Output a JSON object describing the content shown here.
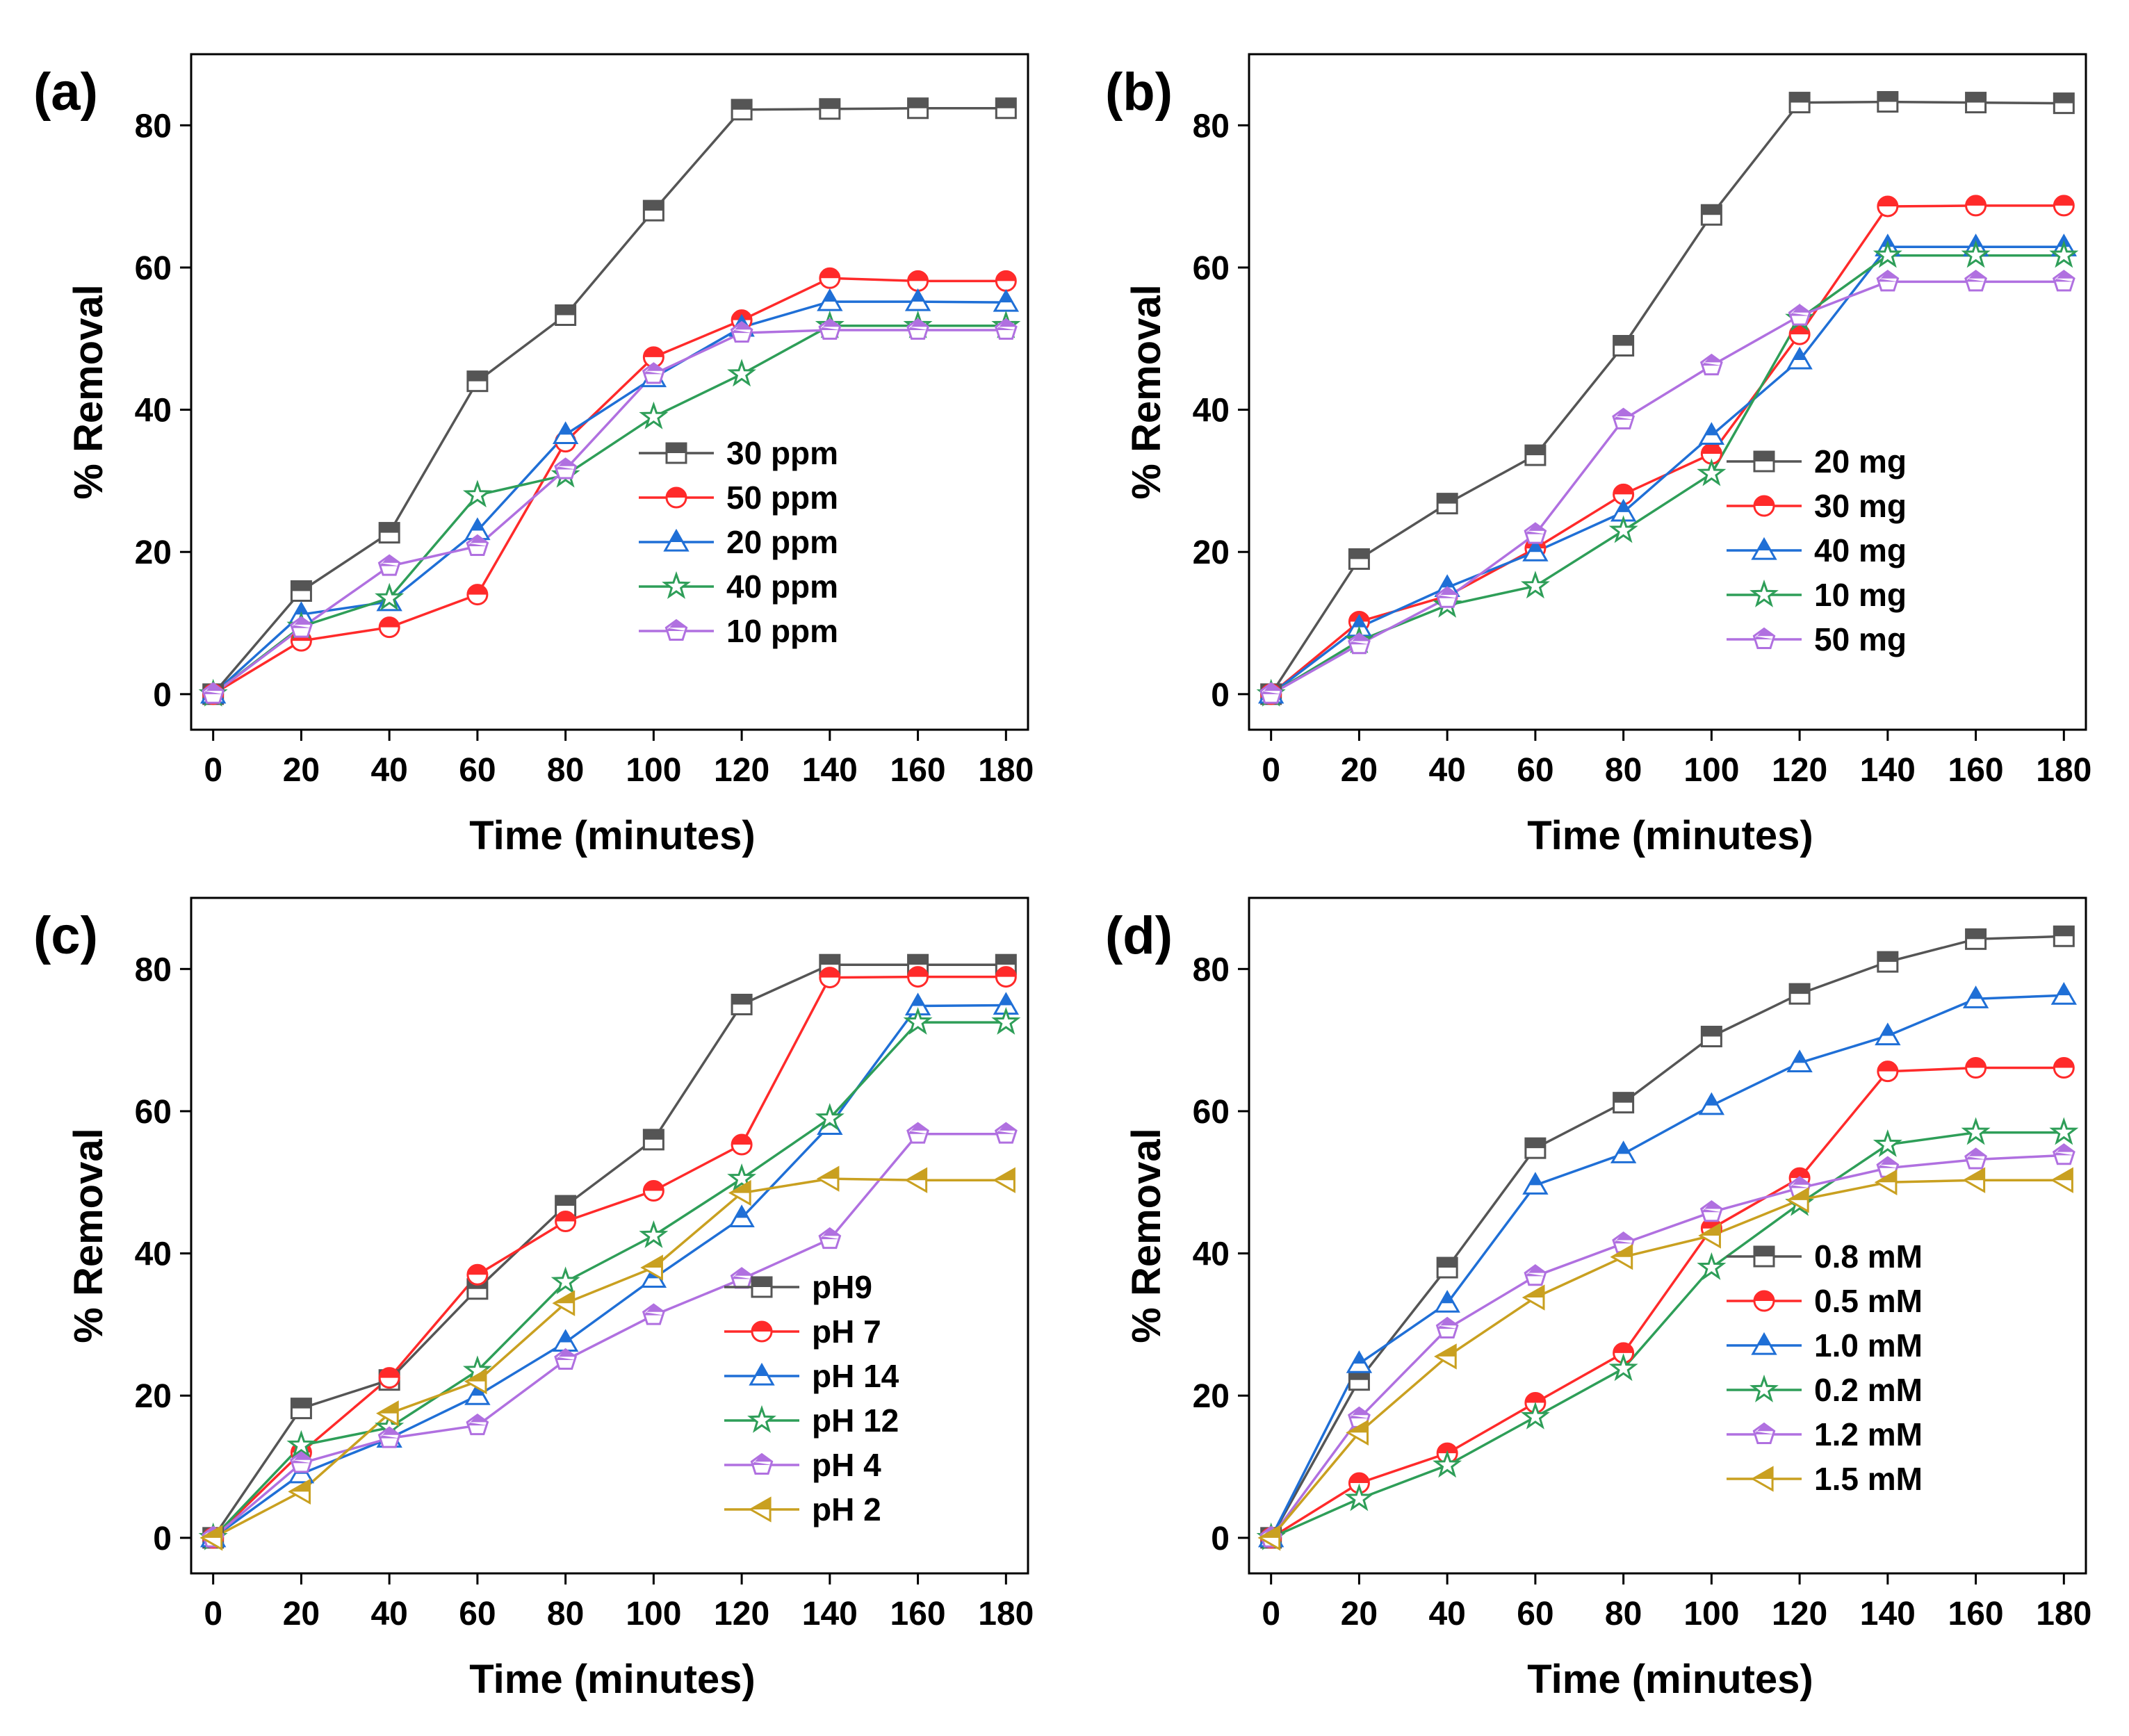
{
  "figure": {
    "panel_count": 4
  },
  "chart_data": [
    {
      "panel": "(a)",
      "type": "line",
      "title": "",
      "xlabel": "Time (minutes)",
      "ylabel": "% Removal",
      "x": [
        0,
        20,
        40,
        60,
        80,
        100,
        120,
        140,
        160,
        180
      ],
      "xticks": [
        0,
        20,
        40,
        60,
        80,
        100,
        120,
        140,
        160,
        180
      ],
      "yticks": [
        0,
        20,
        40,
        60,
        80
      ],
      "xlim": [
        -5,
        185
      ],
      "ylim": [
        -5,
        90
      ],
      "grid": false,
      "legend": "center-right",
      "series": [
        {
          "name": "30 ppm",
          "color": "#555555",
          "marker": "square",
          "values": [
            0,
            14.5,
            22.7,
            44,
            53.3,
            68,
            82.2,
            82.3,
            82.4,
            82.4
          ]
        },
        {
          "name": "50 ppm",
          "color": "#ff2a2a",
          "marker": "circle",
          "values": [
            0,
            7.5,
            9.4,
            14,
            35.5,
            47.4,
            52.6,
            58.5,
            58.1,
            58.1
          ]
        },
        {
          "name": "20 ppm",
          "color": "#1f6fd6",
          "marker": "triangle",
          "values": [
            0,
            11.2,
            13,
            23,
            36.5,
            44.5,
            51.6,
            55.2,
            55.2,
            55.1
          ]
        },
        {
          "name": "40 ppm",
          "color": "#2e9e58",
          "marker": "star",
          "values": [
            0,
            9.5,
            13.5,
            28,
            30.8,
            39,
            45,
            51.8,
            51.8,
            51.8
          ]
        },
        {
          "name": "10 ppm",
          "color": "#b070e0",
          "marker": "pentagon",
          "values": [
            0,
            9.3,
            18,
            20.8,
            31.6,
            45,
            50.8,
            51.2,
            51.2,
            51.2
          ]
        }
      ]
    },
    {
      "panel": "(b)",
      "type": "line",
      "title": "",
      "xlabel": "Time (minutes)",
      "ylabel": "% Removal",
      "x": [
        0,
        20,
        40,
        60,
        80,
        100,
        120,
        140,
        160,
        180
      ],
      "xticks": [
        0,
        20,
        40,
        60,
        80,
        100,
        120,
        140,
        160,
        180
      ],
      "yticks": [
        0,
        20,
        40,
        60,
        80
      ],
      "xlim": [
        -5,
        185
      ],
      "ylim": [
        -5,
        90
      ],
      "grid": false,
      "legend": "center-right",
      "series": [
        {
          "name": "20 mg",
          "color": "#555555",
          "marker": "square",
          "values": [
            0,
            19,
            26.8,
            33.6,
            49,
            67.4,
            83.2,
            83.3,
            83.2,
            83.1
          ]
        },
        {
          "name": "30 mg",
          "color": "#ff2a2a",
          "marker": "circle",
          "values": [
            0,
            10.2,
            13.8,
            20.5,
            28.1,
            33.8,
            50.6,
            68.6,
            68.7,
            68.7
          ]
        },
        {
          "name": "40 mg",
          "color": "#1f6fd6",
          "marker": "triangle",
          "values": [
            0,
            9.4,
            15,
            20,
            25.6,
            36.4,
            47,
            62.9,
            62.9,
            62.9
          ]
        },
        {
          "name": "10 mg",
          "color": "#2e9e58",
          "marker": "star",
          "values": [
            0,
            7.5,
            12.5,
            15.2,
            23,
            31,
            52.8,
            61.7,
            61.7,
            61.7
          ]
        },
        {
          "name": "50 mg",
          "color": "#b070e0",
          "marker": "pentagon",
          "values": [
            0,
            7,
            13.5,
            22.5,
            38.6,
            46.2,
            53.2,
            58,
            58,
            58
          ]
        }
      ]
    },
    {
      "panel": "(c)",
      "type": "line",
      "title": "",
      "xlabel": "Time (minutes)",
      "ylabel": "% Removal",
      "x": [
        0,
        20,
        40,
        60,
        80,
        100,
        120,
        140,
        160,
        180
      ],
      "xticks": [
        0,
        20,
        40,
        60,
        80,
        100,
        120,
        140,
        160,
        180
      ],
      "yticks": [
        0,
        20,
        40,
        60,
        80
      ],
      "xlim": [
        -5,
        185
      ],
      "ylim": [
        -5,
        90
      ],
      "grid": false,
      "legend": "center-right",
      "series": [
        {
          "name": "pH9",
          "color": "#555555",
          "marker": "square",
          "values": [
            0,
            18.2,
            22.2,
            35,
            46.7,
            56,
            75,
            80.6,
            80.6,
            80.6
          ]
        },
        {
          "name": "pH 7",
          "color": "#ff2a2a",
          "marker": "circle",
          "values": [
            0,
            12,
            22.5,
            37,
            44.5,
            48.8,
            55.3,
            78.8,
            78.9,
            78.9
          ]
        },
        {
          "name": "pH 14",
          "color": "#1f6fd6",
          "marker": "triangle",
          "values": [
            0,
            9,
            14,
            20,
            27.5,
            36.5,
            45,
            58,
            74.8,
            74.9
          ]
        },
        {
          "name": "pH 12",
          "color": "#2e9e58",
          "marker": "star",
          "values": [
            0,
            13,
            15.5,
            23.5,
            36,
            42.5,
            50.5,
            59,
            72.5,
            72.5
          ]
        },
        {
          "name": "pH 4",
          "color": "#b070e0",
          "marker": "pentagon",
          "values": [
            0,
            10.5,
            14,
            15.8,
            25,
            31.3,
            36.4,
            42,
            56.8,
            56.8
          ]
        },
        {
          "name": "pH 2",
          "color": "#c9a020",
          "marker": "triangle-left",
          "values": [
            0,
            6.5,
            17.5,
            22,
            33,
            38,
            48.5,
            50.5,
            50.3,
            50.3
          ]
        }
      ]
    },
    {
      "panel": "(d)",
      "type": "line",
      "title": "",
      "xlabel": "Time (minutes)",
      "ylabel": "% Removal",
      "x": [
        0,
        20,
        40,
        60,
        80,
        100,
        120,
        140,
        160,
        180
      ],
      "xticks": [
        0,
        20,
        40,
        60,
        80,
        100,
        120,
        140,
        160,
        180
      ],
      "yticks": [
        0,
        20,
        40,
        60,
        80
      ],
      "xlim": [
        -5,
        185
      ],
      "ylim": [
        -5,
        90
      ],
      "grid": false,
      "legend": "center-right",
      "series": [
        {
          "name": "0.8 mM",
          "color": "#555555",
          "marker": "square",
          "values": [
            0,
            22.2,
            38,
            54.8,
            61.2,
            70.5,
            76.5,
            81,
            84.2,
            84.6
          ]
        },
        {
          "name": "0.5 mM",
          "color": "#ff2a2a",
          "marker": "circle",
          "values": [
            0,
            7.7,
            11.9,
            19,
            26,
            43.5,
            50.6,
            65.6,
            66.1,
            66.1
          ]
        },
        {
          "name": "1.0 mM",
          "color": "#1f6fd6",
          "marker": "triangle",
          "values": [
            0,
            24.5,
            33,
            49.6,
            54,
            60.8,
            66.8,
            70.6,
            75.8,
            76.3
          ]
        },
        {
          "name": "0.2 mM",
          "color": "#2e9e58",
          "marker": "star",
          "values": [
            0,
            5.5,
            10.2,
            17,
            23.8,
            38,
            47,
            55.3,
            57,
            57
          ]
        },
        {
          "name": "1.2 mM",
          "color": "#b070e0",
          "marker": "pentagon",
          "values": [
            0,
            16.8,
            29.4,
            36.8,
            41.4,
            45.8,
            49.2,
            52,
            53.2,
            53.8
          ]
        },
        {
          "name": "1.5 mM",
          "color": "#c9a020",
          "marker": "triangle-left",
          "values": [
            0,
            14.8,
            25.5,
            33.8,
            39.5,
            42.5,
            47.5,
            50,
            50.3,
            50.3
          ]
        }
      ]
    }
  ]
}
